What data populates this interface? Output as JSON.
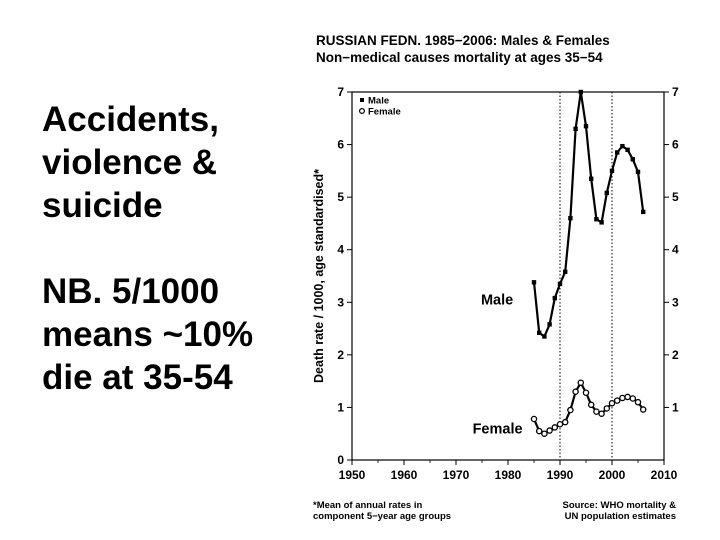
{
  "slide": {
    "heading_lines": [
      "Accidents,",
      "violence &",
      "suicide"
    ],
    "note_lines": [
      "NB.   5/1000",
      "means ~10%",
      "die at 35-54"
    ]
  },
  "chart_data": {
    "type": "line",
    "title": "RUSSIAN FEDN. 1985−2006: Males & Females",
    "subtitle": "Non−medical causes mortality at ages 35−54",
    "xlabel": "",
    "ylabel": "Death rate / 1000, age standardised*",
    "xlim": [
      1950,
      2010
    ],
    "ylim": [
      0,
      7
    ],
    "x_ticks": [
      "1950",
      "1960",
      "1970",
      "1980",
      "1990",
      "2000",
      "2010"
    ],
    "y_ticks": [
      "0",
      "1",
      "2",
      "3",
      "4",
      "5",
      "6",
      "7"
    ],
    "y_ticks_right": [
      "1",
      "2",
      "3",
      "4",
      "5",
      "6",
      "7"
    ],
    "grid": false,
    "reference_lines_x": [
      1990,
      2000
    ],
    "legend": {
      "placement": "top-left",
      "entries": [
        "Male",
        "Female"
      ]
    },
    "series": [
      {
        "name": "Male",
        "marker": "filled-square",
        "x": [
          1985,
          1986,
          1987,
          1988,
          1989,
          1990,
          1991,
          1992,
          1993,
          1994,
          1995,
          1996,
          1997,
          1998,
          1999,
          2000,
          2001,
          2002,
          2003,
          2004,
          2005,
          2006
        ],
        "y": [
          3.38,
          2.42,
          2.35,
          2.58,
          3.08,
          3.35,
          3.58,
          4.6,
          6.3,
          7.0,
          6.35,
          5.35,
          4.58,
          4.52,
          5.08,
          5.5,
          5.85,
          5.97,
          5.9,
          5.72,
          5.48,
          4.72
        ]
      },
      {
        "name": "Female",
        "marker": "open-circle",
        "x": [
          1985,
          1986,
          1987,
          1988,
          1989,
          1990,
          1991,
          1992,
          1993,
          1994,
          1995,
          1996,
          1997,
          1998,
          1999,
          2000,
          2001,
          2002,
          2003,
          2004,
          2005,
          2006
        ],
        "y": [
          0.78,
          0.55,
          0.5,
          0.56,
          0.62,
          0.68,
          0.72,
          0.95,
          1.3,
          1.47,
          1.28,
          1.05,
          0.92,
          0.88,
          0.98,
          1.08,
          1.13,
          1.18,
          1.2,
          1.17,
          1.1,
          0.96
        ]
      }
    ],
    "annotations": [
      {
        "text": "Male",
        "x": 1981,
        "y": 3.05
      },
      {
        "text": "Female",
        "x": 1982.8,
        "y": 0.6
      }
    ],
    "footnote": [
      "*Mean of annual rates in",
      " component 5−year age groups"
    ],
    "source": [
      "Source: WHO mortality &",
      "UN population estimates"
    ]
  }
}
